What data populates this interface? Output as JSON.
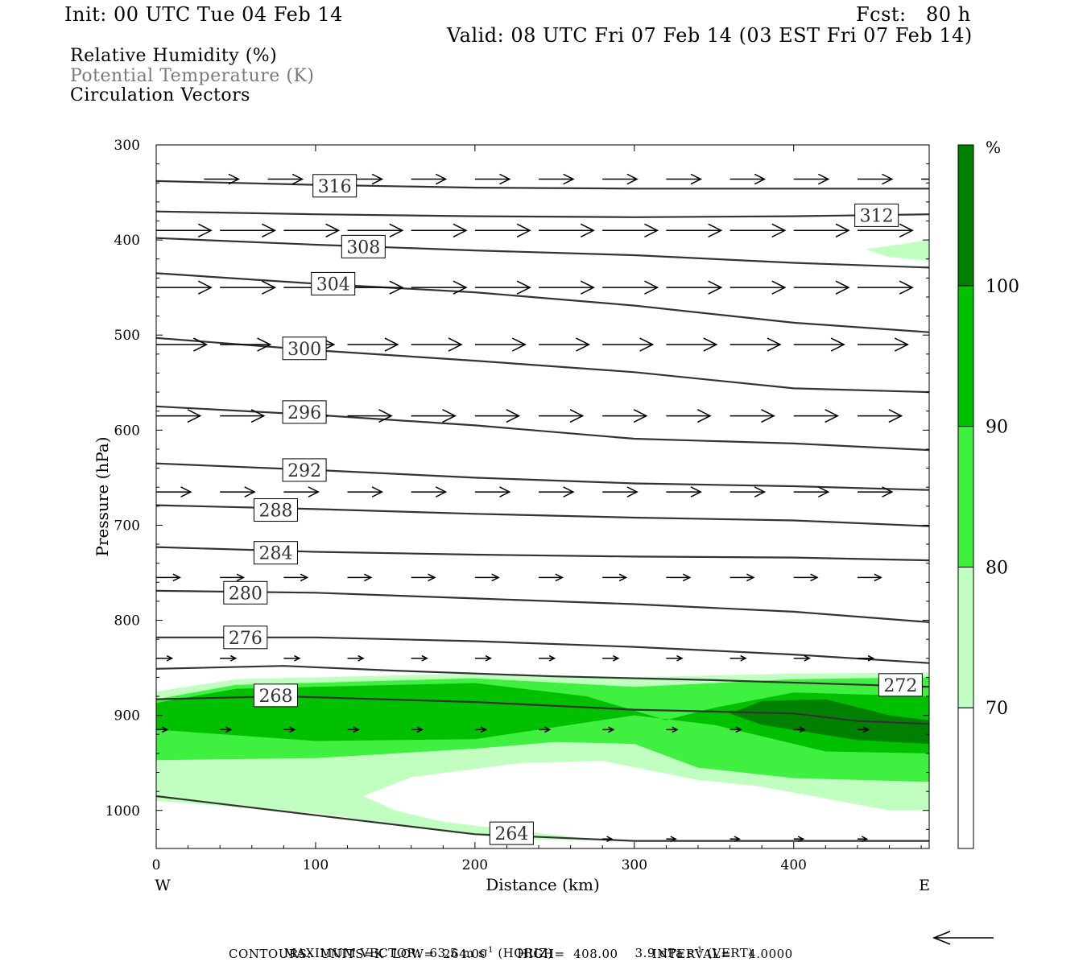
{
  "header": {
    "init": "Init: 00 UTC Tue 04 Feb 14",
    "fcst": "Fcst:   80 h",
    "valid": "Valid: 08 UTC Fri 07 Feb 14 (03 EST Fri 07 Feb 14)"
  },
  "fields": {
    "rh": "Relative Humidity (%)",
    "theta": "Potential Temperature (K)",
    "vectors": "Circulation Vectors"
  },
  "colors": {
    "theta_line": "#333333",
    "rh_70": "#c0ffc0",
    "rh_80": "#40f040",
    "rh_90": "#00c000",
    "rh_100": "#008000",
    "vector": "#000000"
  },
  "footer": {
    "max_vector": "MAXIMUM VECTOR:  63.5 m s",
    "max_vector_horiz": "(HORIZ)",
    "max_vector_vert_val": "3.9 dPa s",
    "max_vector_vert": "(VERT)",
    "exp": "-1",
    "contours": "CONTOURS:  UNITS=K  LOW=  264.00       HIGH=  408.00        INTERVAL=    4.0000"
  },
  "chart_data": {
    "type": "cross-section",
    "xlabel": "Distance (km)",
    "ylabel": "Pressure (hPa)",
    "xlim": [
      0,
      485
    ],
    "ylim": [
      1040,
      300
    ],
    "x_ticks": [
      0,
      100,
      200,
      300,
      400
    ],
    "y_ticks": [
      300,
      400,
      500,
      600,
      700,
      800,
      900,
      1000
    ],
    "end_labels": {
      "left": "W",
      "right": "E"
    },
    "colorbar": {
      "unit": "%",
      "levels": [
        70,
        80,
        90,
        100
      ],
      "labels": [
        "70",
        "80",
        "90",
        "100"
      ]
    },
    "theta_contours": [
      {
        "level": 316,
        "label": "316",
        "points": [
          [
            0,
            338
          ],
          [
            100,
            342
          ],
          [
            200,
            345
          ],
          [
            300,
            346
          ],
          [
            400,
            346
          ],
          [
            485,
            346
          ]
        ],
        "label_at": [
          112,
          343
        ]
      },
      {
        "level": 312,
        "label": "312",
        "points": [
          [
            0,
            370
          ],
          [
            100,
            373
          ],
          [
            200,
            375
          ],
          [
            300,
            376
          ],
          [
            400,
            375
          ],
          [
            485,
            373
          ]
        ],
        "label_at": [
          452,
          374
        ]
      },
      {
        "level": 308,
        "label": "308",
        "points": [
          [
            0,
            398
          ],
          [
            100,
            405
          ],
          [
            200,
            411
          ],
          [
            300,
            416
          ],
          [
            400,
            424
          ],
          [
            485,
            429
          ]
        ],
        "label_at": [
          130,
          407
        ]
      },
      {
        "level": 304,
        "label": "304",
        "points": [
          [
            0,
            435
          ],
          [
            100,
            446
          ],
          [
            200,
            455
          ],
          [
            300,
            469
          ],
          [
            400,
            487
          ],
          [
            485,
            497
          ]
        ],
        "label_at": [
          111,
          446
        ]
      },
      {
        "level": 300,
        "label": "300",
        "points": [
          [
            0,
            503
          ],
          [
            100,
            516
          ],
          [
            200,
            527
          ],
          [
            300,
            539
          ],
          [
            400,
            556
          ],
          [
            485,
            560
          ]
        ],
        "label_at": [
          93,
          514
        ]
      },
      {
        "level": 296,
        "label": "296",
        "points": [
          [
            0,
            575
          ],
          [
            100,
            584
          ],
          [
            200,
            595
          ],
          [
            300,
            609
          ],
          [
            400,
            614
          ],
          [
            485,
            621
          ]
        ],
        "label_at": [
          93,
          581
        ]
      },
      {
        "level": 292,
        "label": "292",
        "points": [
          [
            0,
            635
          ],
          [
            100,
            642
          ],
          [
            200,
            650
          ],
          [
            300,
            656
          ],
          [
            400,
            659
          ],
          [
            485,
            663
          ]
        ],
        "label_at": [
          93,
          642
        ]
      },
      {
        "level": 288,
        "label": "288",
        "points": [
          [
            0,
            679
          ],
          [
            100,
            683
          ],
          [
            200,
            688
          ],
          [
            300,
            692
          ],
          [
            400,
            695
          ],
          [
            485,
            701
          ]
        ],
        "label_at": [
          75,
          684
        ]
      },
      {
        "level": 284,
        "label": "284",
        "points": [
          [
            0,
            723
          ],
          [
            100,
            728
          ],
          [
            200,
            731
          ],
          [
            300,
            733
          ],
          [
            400,
            734
          ],
          [
            485,
            737
          ]
        ],
        "label_at": [
          75,
          729
        ]
      },
      {
        "level": 280,
        "label": "280",
        "points": [
          [
            0,
            769
          ],
          [
            100,
            771
          ],
          [
            200,
            777
          ],
          [
            300,
            783
          ],
          [
            400,
            791
          ],
          [
            485,
            802
          ]
        ],
        "label_at": [
          56,
          771
        ]
      },
      {
        "level": 276,
        "label": "276",
        "points": [
          [
            0,
            818
          ],
          [
            100,
            818
          ],
          [
            200,
            822
          ],
          [
            300,
            828
          ],
          [
            400,
            836
          ],
          [
            485,
            845
          ]
        ],
        "label_at": [
          56,
          818
        ]
      },
      {
        "level": 272,
        "label": "272",
        "points": [
          [
            0,
            851
          ],
          [
            80,
            848
          ],
          [
            150,
            853
          ],
          [
            250,
            859
          ],
          [
            350,
            863
          ],
          [
            485,
            870
          ]
        ],
        "label_at": [
          467,
          868
        ]
      },
      {
        "level": 268,
        "label": "268",
        "points": [
          [
            0,
            883
          ],
          [
            80,
            880
          ],
          [
            200,
            886
          ],
          [
            300,
            894
          ],
          [
            400,
            898
          ],
          [
            440,
            906
          ],
          [
            485,
            909
          ]
        ],
        "label_at": [
          75,
          879
        ]
      },
      {
        "level": 264,
        "label": "264",
        "points": [
          [
            0,
            985
          ],
          [
            100,
            1005
          ],
          [
            200,
            1025
          ],
          [
            300,
            1032
          ],
          [
            400,
            1032
          ],
          [
            485,
            1032
          ]
        ],
        "label_at": [
          223,
          1024
        ]
      }
    ],
    "rh_regions": [
      {
        "level": 70,
        "points": [
          [
            0,
            875
          ],
          [
            50,
            862
          ],
          [
            200,
            856
          ],
          [
            300,
            860
          ],
          [
            400,
            856
          ],
          [
            485,
            855
          ],
          [
            485,
            1000
          ],
          [
            460,
            1000
          ],
          [
            380,
            975
          ],
          [
            340,
            968
          ],
          [
            280,
            948
          ],
          [
            230,
            950
          ],
          [
            160,
            965
          ],
          [
            130,
            985
          ],
          [
            150,
            1000
          ],
          [
            180,
            1012
          ],
          [
            230,
            1022
          ],
          [
            285,
            1032
          ],
          [
            220,
            1030
          ],
          [
            100,
            1003
          ],
          [
            0,
            990
          ]
        ]
      },
      {
        "level": 80,
        "points": [
          [
            0,
            883
          ],
          [
            50,
            868
          ],
          [
            200,
            861
          ],
          [
            300,
            870
          ],
          [
            400,
            862
          ],
          [
            485,
            860
          ],
          [
            485,
            970
          ],
          [
            400,
            966
          ],
          [
            340,
            955
          ],
          [
            300,
            930
          ],
          [
            250,
            928
          ],
          [
            200,
            935
          ],
          [
            100,
            945
          ],
          [
            0,
            947
          ]
        ]
      },
      {
        "level": 90,
        "points": [
          [
            0,
            887
          ],
          [
            50,
            872
          ],
          [
            200,
            866
          ],
          [
            270,
            880
          ],
          [
            320,
            905
          ],
          [
            350,
            892
          ],
          [
            400,
            876
          ],
          [
            485,
            880
          ],
          [
            485,
            940
          ],
          [
            420,
            938
          ],
          [
            350,
            910
          ],
          [
            300,
            900
          ],
          [
            200,
            925
          ],
          [
            100,
            927
          ],
          [
            0,
            915
          ]
        ]
      },
      {
        "level": 100,
        "points": [
          [
            360,
            898
          ],
          [
            380,
            885
          ],
          [
            420,
            883
          ],
          [
            460,
            900
          ],
          [
            485,
            905
          ],
          [
            485,
            930
          ],
          [
            440,
            926
          ],
          [
            380,
            910
          ]
        ]
      },
      {
        "level": 70,
        "points": [
          [
            445,
            410
          ],
          [
            485,
            400
          ],
          [
            485,
            422
          ],
          [
            460,
            418
          ]
        ]
      }
    ],
    "vectors": [
      {
        "y": 336,
        "x": [
          30,
          70,
          120,
          160,
          200,
          240,
          280,
          320,
          360,
          400,
          440,
          480
        ],
        "u": 22
      },
      {
        "y": 390,
        "x": [
          0,
          40,
          80,
          120,
          160,
          200,
          240,
          280,
          320,
          360,
          400,
          440
        ],
        "u": 35
      },
      {
        "y": 450,
        "x": [
          0,
          40,
          80,
          120,
          160,
          200,
          240,
          280,
          320,
          360,
          400,
          440
        ],
        "u": 35
      },
      {
        "y": 510,
        "x": [
          0,
          40,
          80,
          120,
          160,
          200,
          240,
          280,
          320,
          360,
          400,
          440
        ],
        "u": 32
      },
      {
        "y": 585,
        "x": [
          0,
          40,
          80,
          120,
          160,
          200,
          240,
          280,
          320,
          360,
          400,
          440
        ],
        "u": 28
      },
      {
        "y": 665,
        "x": [
          0,
          40,
          80,
          120,
          160,
          200,
          240,
          280,
          320,
          360,
          400,
          440
        ],
        "u": 22
      },
      {
        "y": 755,
        "x": [
          0,
          40,
          80,
          120,
          160,
          200,
          240,
          280,
          320,
          360,
          400,
          440
        ],
        "u": 15
      },
      {
        "y": 840,
        "x": [
          0,
          40,
          80,
          120,
          160,
          200,
          240,
          280,
          320,
          360,
          400,
          440
        ],
        "u": 10
      },
      {
        "y": 915,
        "x": [
          0,
          40,
          80,
          120,
          160,
          200,
          240,
          280,
          320,
          360,
          400,
          440
        ],
        "u": 7
      },
      {
        "y": 1030,
        "x": [
          280,
          320,
          360,
          400,
          440
        ],
        "u": 6
      }
    ]
  }
}
